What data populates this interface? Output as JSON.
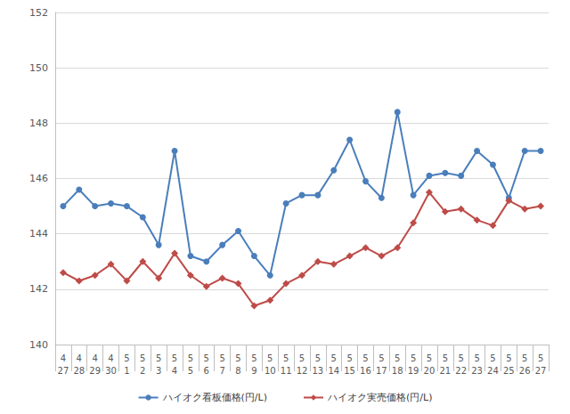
{
  "chart_data": {
    "type": "line",
    "categories": [
      "4\n27",
      "4\n28",
      "4\n29",
      "4\n30",
      "5\n1",
      "5\n2",
      "5\n3",
      "5\n4",
      "5\n5",
      "5\n6",
      "5\n7",
      "5\n8",
      "5\n9",
      "5\n10",
      "5\n11",
      "5\n12",
      "5\n13",
      "5\n14",
      "5\n15",
      "5\n16",
      "5\n17",
      "5\n18",
      "5\n19",
      "5\n20",
      "5\n21",
      "5\n22",
      "5\n23",
      "5\n24",
      "5\n25",
      "5\n26",
      "5\n27"
    ],
    "series": [
      {
        "name": "ハイオク看板価格(円/L)",
        "color": "#4a7ebb",
        "marker": "circle",
        "values": [
          145.0,
          145.6,
          145.0,
          145.1,
          145.0,
          144.6,
          143.6,
          147.0,
          143.2,
          143.0,
          143.6,
          144.1,
          143.2,
          142.5,
          145.1,
          145.4,
          145.4,
          146.3,
          147.4,
          145.9,
          145.3,
          148.4,
          145.4,
          146.1,
          146.2,
          146.1,
          147.0,
          146.5,
          145.3,
          147.0,
          147.0
        ]
      },
      {
        "name": "ハイオク実売価格(円/L)",
        "color": "#be4b48",
        "marker": "diamond",
        "values": [
          142.6,
          142.3,
          142.5,
          142.9,
          142.3,
          143.0,
          142.4,
          143.3,
          142.5,
          142.1,
          142.4,
          142.2,
          141.4,
          141.6,
          142.2,
          142.5,
          143.0,
          142.9,
          143.2,
          143.5,
          143.2,
          143.5,
          144.4,
          145.5,
          144.8,
          144.9,
          144.5,
          144.3,
          145.2,
          144.9,
          145.0
        ]
      }
    ],
    "ylim": [
      140,
      152
    ],
    "yticks": [
      140,
      142,
      144,
      146,
      148,
      150,
      152
    ],
    "grid": true,
    "legend": "bottom"
  }
}
